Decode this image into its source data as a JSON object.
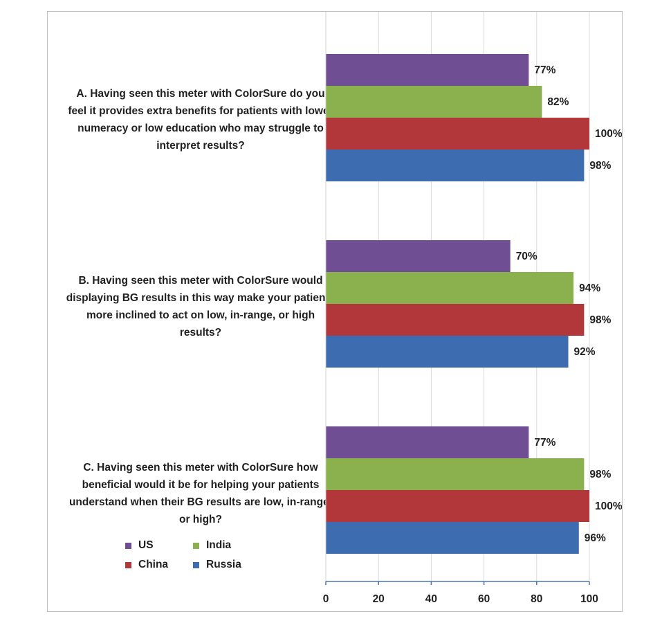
{
  "chart_data": {
    "type": "bar",
    "orientation": "horizontal",
    "categories": [
      "A. Having seen this meter with ColorSure do you feel it provides extra benefits for patients with lower numeracy or low education who may struggle to interpret results?",
      "B. Having seen this meter with ColorSure would displaying BG results in this way make your patients more inclined to act on low, in-range, or high results?",
      "C. Having seen this meter with ColorSure how beneficial would it be for helping your patients understand when their BG results are low, in-range, or high?"
    ],
    "series": [
      {
        "name": "US",
        "color": "#6F4E93",
        "values": [
          77,
          70,
          77
        ],
        "labels": [
          "77%",
          "70%",
          "77%"
        ]
      },
      {
        "name": "India",
        "color": "#8AB14D",
        "values": [
          82,
          94,
          98
        ],
        "labels": [
          "82%",
          "94%",
          "98%"
        ]
      },
      {
        "name": "China",
        "color": "#B2373B",
        "values": [
          100,
          98,
          100
        ],
        "labels": [
          "100%",
          "98%",
          "100%"
        ]
      },
      {
        "name": "Russia",
        "color": "#3E6CB0",
        "values": [
          98,
          92,
          96
        ],
        "labels": [
          "98%",
          "92%",
          "96%"
        ]
      }
    ],
    "xlim": [
      0,
      100
    ],
    "xticks": [
      "0",
      "20",
      "40",
      "60",
      "80",
      "100"
    ],
    "grid": true,
    "legend_position": "bottom-left"
  },
  "legend": {
    "us": "US",
    "india": "India",
    "china": "China",
    "russia": "Russia"
  }
}
